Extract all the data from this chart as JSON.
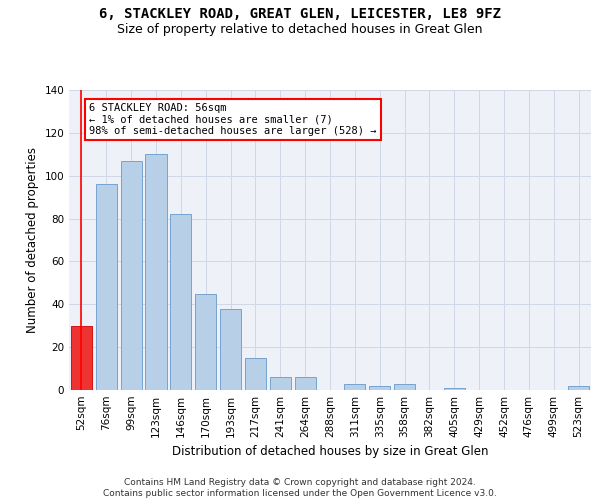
{
  "title": "6, STACKLEY ROAD, GREAT GLEN, LEICESTER, LE8 9FZ",
  "subtitle": "Size of property relative to detached houses in Great Glen",
  "xlabel": "Distribution of detached houses by size in Great Glen",
  "ylabel": "Number of detached properties",
  "categories": [
    "52sqm",
    "76sqm",
    "99sqm",
    "123sqm",
    "146sqm",
    "170sqm",
    "193sqm",
    "217sqm",
    "241sqm",
    "264sqm",
    "288sqm",
    "311sqm",
    "335sqm",
    "358sqm",
    "382sqm",
    "405sqm",
    "429sqm",
    "452sqm",
    "476sqm",
    "499sqm",
    "523sqm"
  ],
  "values": [
    30,
    96,
    107,
    110,
    82,
    45,
    38,
    15,
    6,
    6,
    0,
    3,
    2,
    3,
    0,
    1,
    0,
    0,
    0,
    0,
    2
  ],
  "bar_color": "#b8cfe8",
  "bar_edge_color": "#6699cc",
  "highlight_bar_index": 0,
  "highlight_color": "#ee3333",
  "highlight_edge_color": "#cc0000",
  "annotation_box_text": "6 STACKLEY ROAD: 56sqm\n← 1% of detached houses are smaller (7)\n98% of semi-detached houses are larger (528) →",
  "ylim": [
    0,
    140
  ],
  "yticks": [
    0,
    20,
    40,
    60,
    80,
    100,
    120,
    140
  ],
  "grid_color": "#d0d8e8",
  "background_color": "#eef2f8",
  "footer_line1": "Contains HM Land Registry data © Crown copyright and database right 2024.",
  "footer_line2": "Contains public sector information licensed under the Open Government Licence v3.0.",
  "title_fontsize": 10,
  "subtitle_fontsize": 9,
  "xlabel_fontsize": 8.5,
  "ylabel_fontsize": 8.5,
  "tick_fontsize": 7.5,
  "annotation_fontsize": 7.5,
  "footer_fontsize": 6.5
}
